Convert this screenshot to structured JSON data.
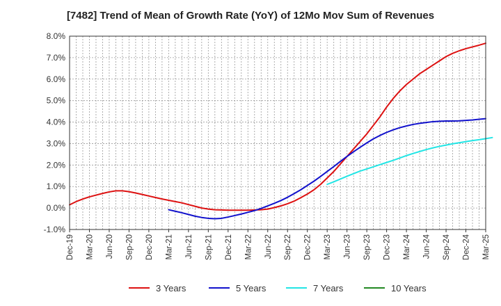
{
  "chart_data": {
    "type": "line",
    "title": "[7482]  Trend of Mean of Growth Rate (YoY) of 12Mo Mov Sum of Revenues",
    "xlabel": "",
    "ylabel": "",
    "ylim": [
      -1.0,
      8.0
    ],
    "y_ticks": [
      -1.0,
      0.0,
      1.0,
      2.0,
      3.0,
      4.0,
      5.0,
      6.0,
      7.0,
      8.0
    ],
    "y_tick_labels": [
      "-1.0%",
      "0.0%",
      "1.0%",
      "2.0%",
      "3.0%",
      "4.0%",
      "5.0%",
      "6.0%",
      "7.0%",
      "8.0%"
    ],
    "x_tick_labels": [
      "Dec-19",
      "Mar-20",
      "Jun-20",
      "Sep-20",
      "Dec-20",
      "Mar-21",
      "Jun-21",
      "Sep-21",
      "Dec-21",
      "Mar-22",
      "Jun-22",
      "Sep-22",
      "Dec-22",
      "Mar-23",
      "Jun-23",
      "Sep-23",
      "Dec-23",
      "Mar-24",
      "Jun-24",
      "Sep-24",
      "Dec-24",
      "Mar-25"
    ],
    "grid": true,
    "legend_position": "bottom",
    "series": [
      {
        "name": "3 Years",
        "color": "#dd1111",
        "start_month_index": 0,
        "values": [
          0.15,
          0.3,
          0.42,
          0.52,
          0.6,
          0.68,
          0.75,
          0.8,
          0.8,
          0.76,
          0.7,
          0.63,
          0.56,
          0.49,
          0.42,
          0.36,
          0.3,
          0.24,
          0.16,
          0.08,
          0.0,
          -0.05,
          -0.08,
          -0.09,
          -0.1,
          -0.1,
          -0.1,
          -0.1,
          -0.09,
          -0.08,
          -0.05,
          0.02,
          0.1,
          0.2,
          0.32,
          0.48,
          0.65,
          0.85,
          1.1,
          1.4,
          1.7,
          2.05,
          2.4,
          2.75,
          3.1,
          3.45,
          3.85,
          4.25,
          4.7,
          5.1,
          5.45,
          5.75,
          6.0,
          6.25,
          6.45,
          6.65,
          6.85,
          7.05,
          7.2,
          7.32,
          7.42,
          7.5,
          7.58,
          7.67
        ]
      },
      {
        "name": "5 Years",
        "color": "#1111cc",
        "start_month_index": 15,
        "values": [
          -0.08,
          -0.15,
          -0.22,
          -0.3,
          -0.38,
          -0.44,
          -0.48,
          -0.5,
          -0.48,
          -0.42,
          -0.35,
          -0.28,
          -0.2,
          -0.12,
          -0.02,
          0.1,
          0.22,
          0.35,
          0.5,
          0.67,
          0.85,
          1.05,
          1.25,
          1.47,
          1.7,
          1.93,
          2.17,
          2.4,
          2.62,
          2.83,
          3.03,
          3.22,
          3.38,
          3.52,
          3.64,
          3.74,
          3.82,
          3.89,
          3.94,
          3.98,
          4.02,
          4.04,
          4.05,
          4.05,
          4.06,
          4.08,
          4.1,
          4.13,
          4.16
        ]
      },
      {
        "name": "7 Years",
        "color": "#22e5e5",
        "start_month_index": 39,
        "values": [
          1.1,
          1.22,
          1.35,
          1.48,
          1.6,
          1.72,
          1.82,
          1.92,
          2.02,
          2.12,
          2.22,
          2.33,
          2.44,
          2.54,
          2.63,
          2.72,
          2.8,
          2.87,
          2.93,
          2.99,
          3.04,
          3.09,
          3.14,
          3.18,
          3.23,
          3.28
        ]
      },
      {
        "name": "10 Years",
        "color": "#228822",
        "start_month_index": 0,
        "values": []
      }
    ]
  }
}
